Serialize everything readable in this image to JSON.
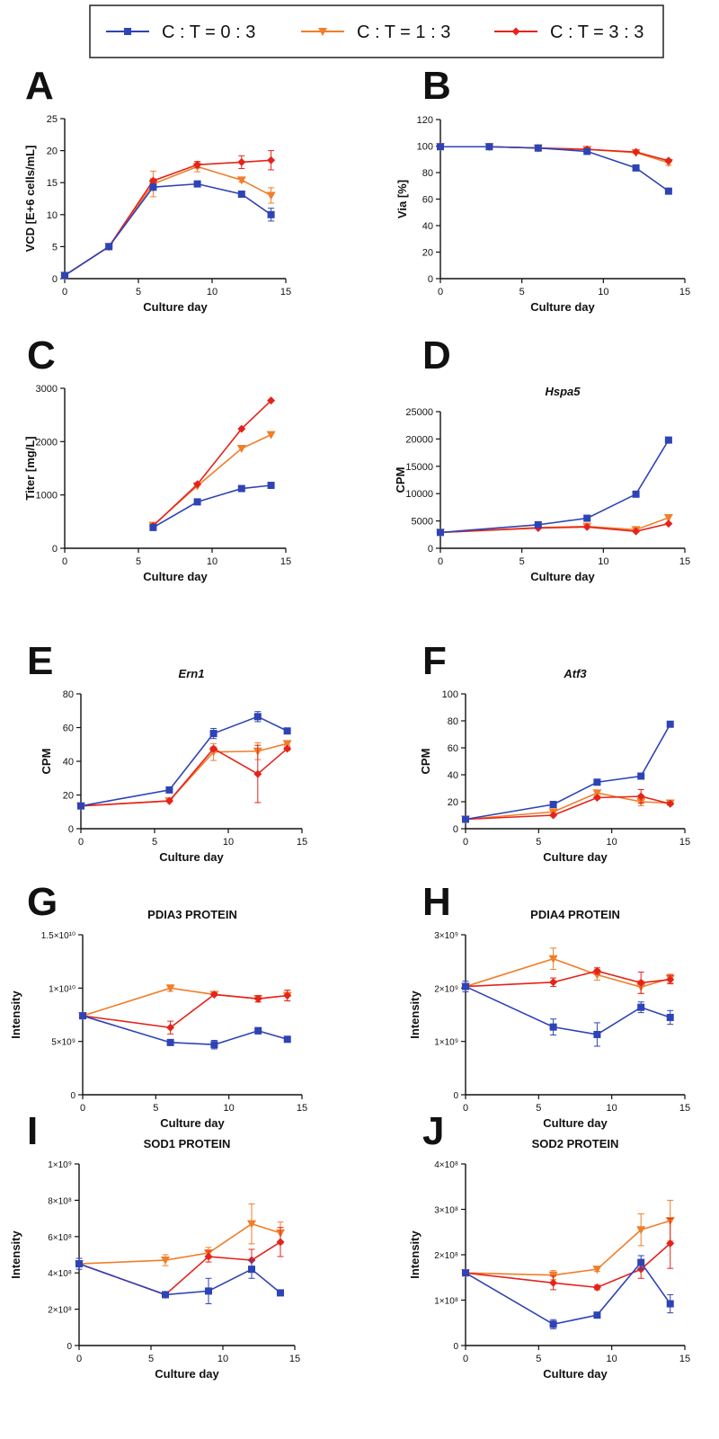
{
  "legend": {
    "entries": [
      {
        "label": "C : T = 0 : 3",
        "color": "#2e43b6",
        "marker": "square"
      },
      {
        "label": "C : T = 1 : 3",
        "color": "#f07e2a",
        "marker": "triangle-down"
      },
      {
        "label": "C : T = 3 : 3",
        "color": "#e5231b",
        "marker": "diamond"
      }
    ]
  },
  "chart_data": [
    {
      "panel": "A",
      "type": "line",
      "title": "",
      "xlabel": "Culture day",
      "ylabel": "VCD [E+6 cells/mL]",
      "xlim": [
        0,
        15
      ],
      "ylim": [
        0,
        25
      ],
      "xticks": [
        "0",
        "5",
        "10",
        "15"
      ],
      "yticks": [
        "0",
        "5",
        "10",
        "15",
        "20",
        "25"
      ],
      "series": [
        {
          "name": "C : T = 0 : 3",
          "x": [
            0,
            3,
            6,
            9,
            12,
            14
          ],
          "y": [
            0.5,
            5,
            14.3,
            14.8,
            13.2,
            10
          ],
          "err": [
            0,
            0,
            0.5,
            0.3,
            0.3,
            1
          ]
        },
        {
          "name": "C : T = 1 : 3",
          "x": [
            0,
            3,
            6,
            9,
            12,
            14
          ],
          "y": [
            0.5,
            5,
            14.8,
            17.5,
            15.4,
            13
          ],
          "err": [
            0,
            0,
            2,
            0.8,
            0.3,
            1.2
          ]
        },
        {
          "name": "C : T = 3 : 3",
          "x": [
            0,
            3,
            6,
            9,
            12,
            14
          ],
          "y": [
            0.5,
            5,
            15.3,
            17.8,
            18.2,
            18.5
          ],
          "err": [
            0,
            0,
            0.3,
            0.5,
            1,
            1.5
          ]
        }
      ]
    },
    {
      "panel": "B",
      "type": "line",
      "title": "",
      "xlabel": "Culture day",
      "ylabel": "Via [%]",
      "xlim": [
        0,
        15
      ],
      "ylim": [
        0,
        120
      ],
      "xticks": [
        "0",
        "5",
        "10",
        "15"
      ],
      "yticks": [
        "0",
        "20",
        "40",
        "60",
        "80",
        "100",
        "120"
      ],
      "series": [
        {
          "name": "C : T = 0 : 3",
          "x": [
            0,
            3,
            6,
            9,
            12,
            14
          ],
          "y": [
            99.5,
            99.5,
            98.5,
            96,
            83.5,
            66
          ],
          "err": [
            0,
            0,
            0,
            0.5,
            1,
            1
          ]
        },
        {
          "name": "C : T = 1 : 3",
          "x": [
            0,
            3,
            6,
            9,
            12,
            14
          ],
          "y": [
            99.5,
            99.5,
            98.5,
            97.5,
            95,
            87.5
          ],
          "err": [
            0,
            0,
            0,
            0.5,
            0.5,
            2
          ]
        },
        {
          "name": "C : T = 3 : 3",
          "x": [
            0,
            3,
            6,
            9,
            12,
            14
          ],
          "y": [
            99.5,
            99.5,
            98.5,
            97.5,
            95.5,
            89
          ],
          "err": [
            0,
            0,
            0,
            0.5,
            0.5,
            1
          ]
        }
      ]
    },
    {
      "panel": "C",
      "type": "line",
      "title": "",
      "xlabel": "Culture day",
      "ylabel": "Titer [mg/L]",
      "xlim": [
        0,
        15
      ],
      "ylim": [
        0,
        3000
      ],
      "xticks": [
        "0",
        "5",
        "10",
        "15"
      ],
      "yticks": [
        "0",
        "1000",
        "2000",
        "3000"
      ],
      "series": [
        {
          "name": "C : T = 0 : 3",
          "x": [
            6,
            9,
            12,
            14
          ],
          "y": [
            390,
            870,
            1120,
            1180
          ],
          "err": [
            0,
            0,
            0,
            0
          ]
        },
        {
          "name": "C : T = 1 : 3",
          "x": [
            6,
            9,
            12,
            14
          ],
          "y": [
            430,
            1170,
            1870,
            2130
          ],
          "err": [
            0,
            0,
            0,
            0
          ]
        },
        {
          "name": "C : T = 3 : 3",
          "x": [
            6,
            9,
            12,
            14
          ],
          "y": [
            420,
            1200,
            2240,
            2770
          ],
          "err": [
            0,
            0,
            0,
            0
          ]
        }
      ]
    },
    {
      "panel": "D",
      "type": "line",
      "title": "Hspa5",
      "title_italic": true,
      "xlabel": "Culture day",
      "ylabel": "CPM",
      "xlim": [
        0,
        15
      ],
      "ylim": [
        0,
        25000
      ],
      "xticks": [
        "0",
        "5",
        "10",
        "15"
      ],
      "yticks": [
        "0",
        "5000",
        "10000",
        "15000",
        "20000",
        "25000"
      ],
      "series": [
        {
          "name": "C : T = 0 : 3",
          "x": [
            0,
            6,
            9,
            12,
            14
          ],
          "y": [
            2900,
            4300,
            5500,
            9900,
            19800
          ],
          "err": [
            0,
            0,
            0,
            0,
            0
          ]
        },
        {
          "name": "C : T = 1 : 3",
          "x": [
            0,
            6,
            9,
            12,
            14
          ],
          "y": [
            2900,
            3800,
            4000,
            3400,
            5600
          ],
          "err": [
            0,
            0,
            0,
            0,
            0
          ]
        },
        {
          "name": "C : T = 3 : 3",
          "x": [
            0,
            6,
            9,
            12,
            14
          ],
          "y": [
            2900,
            3700,
            3900,
            3100,
            4500
          ],
          "err": [
            0,
            0,
            0,
            0,
            0
          ]
        }
      ]
    },
    {
      "panel": "E",
      "type": "line",
      "title": "Ern1",
      "title_italic": true,
      "xlabel": "Culture day",
      "ylabel": "CPM",
      "xlim": [
        0,
        15
      ],
      "ylim": [
        0,
        80
      ],
      "xticks": [
        "0",
        "5",
        "10",
        "15"
      ],
      "yticks": [
        "0",
        "20",
        "40",
        "60",
        "80"
      ],
      "series": [
        {
          "name": "C : T = 0 : 3",
          "x": [
            0,
            6,
            9,
            12,
            14
          ],
          "y": [
            13.5,
            23,
            56.5,
            66.5,
            58
          ],
          "err": [
            1.5,
            0.5,
            3,
            3,
            1
          ]
        },
        {
          "name": "C : T = 1 : 3",
          "x": [
            0,
            6,
            9,
            12,
            14
          ],
          "y": [
            13.5,
            16.5,
            45.5,
            46,
            50.5
          ],
          "err": [
            0,
            0.5,
            5,
            5,
            1
          ]
        },
        {
          "name": "C : T = 3 : 3",
          "x": [
            0,
            6,
            9,
            12,
            14
          ],
          "y": [
            13.5,
            16.5,
            47.5,
            32.5,
            47.5
          ],
          "err": [
            0,
            0.5,
            1,
            17,
            1
          ]
        }
      ]
    },
    {
      "panel": "F",
      "type": "line",
      "title": "Atf3",
      "title_italic": true,
      "xlabel": "Culture day",
      "ylabel": "CPM",
      "xlim": [
        0,
        15
      ],
      "ylim": [
        0,
        100
      ],
      "xticks": [
        "0",
        "5",
        "10",
        "15"
      ],
      "yticks": [
        "0",
        "20",
        "40",
        "60",
        "80",
        "100"
      ],
      "series": [
        {
          "name": "C : T = 0 : 3",
          "x": [
            0,
            6,
            9,
            12,
            14
          ],
          "y": [
            7,
            18,
            34.5,
            39,
            77.5
          ],
          "err": [
            0,
            1,
            1,
            1,
            2
          ]
        },
        {
          "name": "C : T = 1 : 3",
          "x": [
            0,
            6,
            9,
            12,
            14
          ],
          "y": [
            7,
            12.5,
            26.5,
            20,
            19
          ],
          "err": [
            0,
            0.5,
            2,
            3,
            1
          ]
        },
        {
          "name": "C : T = 3 : 3",
          "x": [
            0,
            6,
            9,
            12,
            14
          ],
          "y": [
            7,
            10,
            23,
            24,
            18.5
          ],
          "err": [
            0,
            0.5,
            1,
            5,
            1
          ]
        }
      ]
    },
    {
      "panel": "G",
      "type": "line",
      "title": "PDIA3 PROTEIN",
      "title_italic": false,
      "xlabel": "Culture day",
      "ylabel": "Intensity",
      "xlim": [
        0,
        15
      ],
      "ylim": [
        0,
        15000000000
      ],
      "xticks": [
        "0",
        "5",
        "10",
        "15"
      ],
      "ytick_values": [
        0,
        5000000000,
        10000000000,
        15000000000
      ],
      "yticks": [
        "0",
        "5×10⁹",
        "1×10¹⁰",
        "1.5×10¹⁰"
      ],
      "series": [
        {
          "name": "C : T = 0 : 3",
          "x": [
            0,
            6,
            9,
            12,
            14
          ],
          "y": [
            7400000000,
            4900000000,
            4700000000,
            6000000000,
            5200000000
          ],
          "err": [
            0,
            200000000,
            400000000,
            300000000,
            200000000
          ]
        },
        {
          "name": "C : T = 1 : 3",
          "x": [
            0,
            6,
            9,
            12,
            14
          ],
          "y": [
            7400000000,
            10000000000,
            9400000000,
            9000000000,
            9300000000
          ],
          "err": [
            0,
            300000000,
            100000000,
            300000000,
            500000000
          ]
        },
        {
          "name": "C : T = 3 : 3",
          "x": [
            0,
            6,
            9,
            12,
            14
          ],
          "y": [
            7400000000,
            6300000000,
            9400000000,
            9000000000,
            9300000000
          ],
          "err": [
            0,
            600000000,
            100000000,
            300000000,
            500000000
          ]
        }
      ]
    },
    {
      "panel": "H",
      "type": "line",
      "title": "PDIA4 PROTEIN",
      "title_italic": false,
      "xlabel": "Culture day",
      "ylabel": "Intensity",
      "xlim": [
        0,
        15
      ],
      "ylim": [
        0,
        3000000000
      ],
      "xticks": [
        "0",
        "5",
        "10",
        "15"
      ],
      "ytick_values": [
        0,
        1000000000,
        2000000000,
        3000000000
      ],
      "yticks": [
        "0",
        "1×10⁹",
        "2×10⁹",
        "3×10⁹"
      ],
      "series": [
        {
          "name": "C : T = 0 : 3",
          "x": [
            0,
            6,
            9,
            12,
            14
          ],
          "y": [
            2030000000,
            1270000000,
            1130000000,
            1640000000,
            1450000000
          ],
          "err": [
            100000000,
            150000000,
            220000000,
            100000000,
            130000000
          ]
        },
        {
          "name": "C : T = 1 : 3",
          "x": [
            0,
            6,
            9,
            12,
            14
          ],
          "y": [
            2030000000,
            2550000000,
            2250000000,
            2020000000,
            2180000000
          ],
          "err": [
            0,
            200000000,
            100000000,
            120000000,
            80000000
          ]
        },
        {
          "name": "C : T = 3 : 3",
          "x": [
            0,
            6,
            9,
            12,
            14
          ],
          "y": [
            2030000000,
            2110000000,
            2320000000,
            2100000000,
            2160000000
          ],
          "err": [
            0,
            80000000,
            60000000,
            200000000,
            80000000
          ]
        }
      ]
    },
    {
      "panel": "I",
      "type": "line",
      "title": "SOD1 PROTEIN",
      "title_italic": false,
      "xlabel": "Culture day",
      "ylabel": "Intensity",
      "xlim": [
        0,
        15
      ],
      "ylim": [
        0,
        1000000000
      ],
      "xticks": [
        "0",
        "5",
        "10",
        "15"
      ],
      "ytick_values": [
        0,
        200000000,
        400000000,
        600000000,
        800000000,
        1000000000
      ],
      "yticks": [
        "0",
        "2×10⁸",
        "4×10⁸",
        "6×10⁸",
        "8×10⁸",
        "1×10⁹"
      ],
      "series": [
        {
          "name": "C : T = 0 : 3",
          "x": [
            0,
            6,
            9,
            12,
            14
          ],
          "y": [
            450000000,
            280000000,
            300000000,
            420000000,
            290000000
          ],
          "err": [
            30000000,
            15000000,
            70000000,
            50000000,
            10000000
          ]
        },
        {
          "name": "C : T = 1 : 3",
          "x": [
            0,
            6,
            9,
            12,
            14
          ],
          "y": [
            450000000,
            470000000,
            510000000,
            670000000,
            620000000
          ],
          "err": [
            0,
            30000000,
            30000000,
            110000000,
            60000000
          ]
        },
        {
          "name": "C : T = 3 : 3",
          "x": [
            0,
            6,
            9,
            12,
            14
          ],
          "y": [
            450000000,
            280000000,
            490000000,
            470000000,
            570000000
          ],
          "err": [
            0,
            15000000,
            30000000,
            60000000,
            80000000
          ]
        }
      ]
    },
    {
      "panel": "J",
      "type": "line",
      "title": "SOD2 PROTEIN",
      "title_italic": false,
      "xlabel": "Culture day",
      "ylabel": "Intensity",
      "xlim": [
        0,
        15
      ],
      "ylim": [
        0,
        400000000
      ],
      "xticks": [
        "0",
        "5",
        "10",
        "15"
      ],
      "ytick_values": [
        0,
        100000000,
        200000000,
        300000000,
        400000000
      ],
      "yticks": [
        "0",
        "1×10⁸",
        "2×10⁸",
        "3×10⁸",
        "4×10⁸"
      ],
      "series": [
        {
          "name": "C : T = 0 : 3",
          "x": [
            0,
            6,
            9,
            12,
            14
          ],
          "y": [
            160000000,
            47000000,
            67000000,
            183000000,
            92000000
          ],
          "err": [
            5000000,
            10000000,
            5000000,
            15000000,
            20000000
          ]
        },
        {
          "name": "C : T = 1 : 3",
          "x": [
            0,
            6,
            9,
            12,
            14
          ],
          "y": [
            160000000,
            155000000,
            168000000,
            255000000,
            275000000
          ],
          "err": [
            0,
            10000000,
            5000000,
            35000000,
            45000000
          ]
        },
        {
          "name": "C : T = 3 : 3",
          "x": [
            0,
            6,
            9,
            12,
            14
          ],
          "y": [
            160000000,
            138000000,
            128000000,
            168000000,
            225000000
          ],
          "err": [
            0,
            15000000,
            5000000,
            20000000,
            55000000
          ]
        }
      ]
    }
  ]
}
